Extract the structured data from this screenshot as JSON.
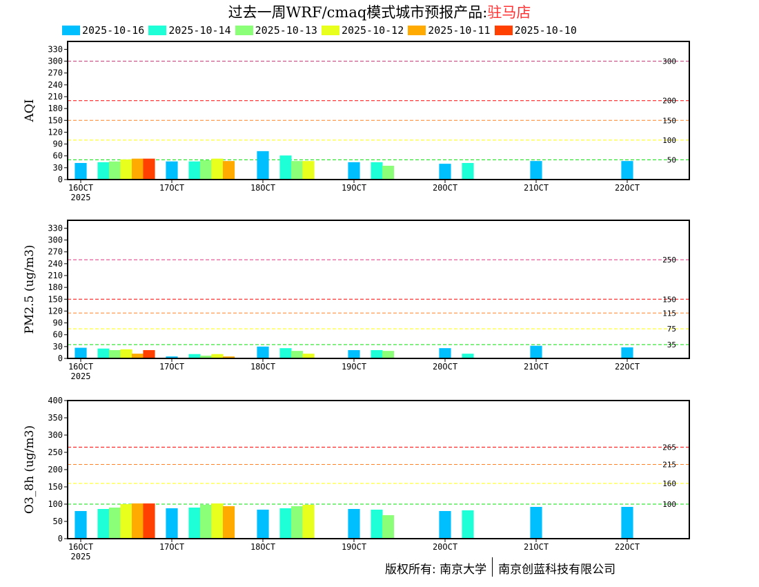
{
  "title": {
    "main": "过去一周WRF/cmaq模式城市预报产品:",
    "site": "驻马店"
  },
  "footer": {
    "left": "版权所有: 南京大学",
    "right": "南京创蓝科技有限公司"
  },
  "chart_data": [
    {
      "type": "bar",
      "ylabel": "AQI",
      "ylim": [
        0,
        350
      ],
      "yticks": [
        0,
        30,
        60,
        90,
        120,
        150,
        180,
        210,
        240,
        270,
        300,
        330
      ],
      "x_day_start": 16,
      "xticks": [
        "16OCT",
        "17OCT",
        "18OCT",
        "19OCT",
        "20OCT",
        "21OCT",
        "22OCT"
      ],
      "xsub": "2025",
      "thresholds": [
        {
          "value": 300,
          "label": "300",
          "color": "#c0306f"
        },
        {
          "value": 200,
          "label": "200",
          "color": "#ff0000"
        },
        {
          "value": 150,
          "label": "150",
          "color": "#ff8020"
        },
        {
          "value": 100,
          "label": "100",
          "color": "#ffff00"
        },
        {
          "value": 50,
          "label": "50",
          "color": "#00e000"
        }
      ],
      "series": [
        {
          "name": "2025-10-16",
          "color": "#00bfff",
          "values": [
            42,
            46,
            72,
            44,
            40,
            47,
            47
          ]
        },
        {
          "name": "2025-10-14",
          "color": "#1effd8",
          "values": [
            44,
            46,
            61,
            44,
            42
          ]
        },
        {
          "name": "2025-10-13",
          "color": "#8cff78",
          "values": [
            46,
            49,
            47,
            35
          ]
        },
        {
          "name": "2025-10-12",
          "color": "#e8ff1e",
          "values": [
            51,
            53,
            47
          ]
        },
        {
          "name": "2025-10-11",
          "color": "#ffaa00",
          "values": [
            53,
            47
          ]
        },
        {
          "name": "2025-10-10",
          "color": "#ff4000",
          "values": [
            53
          ]
        }
      ]
    },
    {
      "type": "bar",
      "ylabel": "PM2.5 (ug/m3)",
      "ylim": [
        0,
        350
      ],
      "yticks": [
        0,
        30,
        60,
        90,
        120,
        150,
        180,
        210,
        240,
        270,
        300,
        330
      ],
      "x_day_start": 16,
      "xticks": [
        "16OCT",
        "17OCT",
        "18OCT",
        "19OCT",
        "20OCT",
        "21OCT",
        "22OCT"
      ],
      "xsub": "2025",
      "thresholds": [
        {
          "value": 250,
          "label": "250",
          "color": "#e0307f"
        },
        {
          "value": 150,
          "label": "150",
          "color": "#ff0000"
        },
        {
          "value": 115,
          "label": "115",
          "color": "#ff8020"
        },
        {
          "value": 75,
          "label": "75",
          "color": "#ffff00"
        },
        {
          "value": 35,
          "label": "35",
          "color": "#00e000"
        }
      ],
      "series": [
        {
          "name": "2025-10-16",
          "color": "#00bfff",
          "values": [
            27,
            5,
            30,
            21,
            26,
            32,
            28
          ]
        },
        {
          "name": "2025-10-14",
          "color": "#1effd8",
          "values": [
            25,
            11,
            26,
            21,
            12
          ]
        },
        {
          "name": "2025-10-13",
          "color": "#8cff78",
          "values": [
            21,
            7,
            19,
            19
          ]
        },
        {
          "name": "2025-10-12",
          "color": "#e8ff1e",
          "values": [
            23,
            11,
            12
          ]
        },
        {
          "name": "2025-10-11",
          "color": "#ffaa00",
          "values": [
            12,
            5
          ]
        },
        {
          "name": "2025-10-10",
          "color": "#ff4000",
          "values": [
            21
          ]
        }
      ]
    },
    {
      "type": "bar",
      "ylabel": "O3_8h (ug/m3)",
      "ylim": [
        0,
        400
      ],
      "yticks": [
        0,
        50,
        100,
        150,
        200,
        250,
        300,
        350,
        400
      ],
      "x_day_start": 16,
      "xticks": [
        "16OCT",
        "17OCT",
        "18OCT",
        "19OCT",
        "20OCT",
        "21OCT",
        "22OCT"
      ],
      "xsub": "2025",
      "thresholds": [
        {
          "value": 265,
          "label": "265",
          "color": "#ff0000"
        },
        {
          "value": 215,
          "label": "215",
          "color": "#ff8020"
        },
        {
          "value": 160,
          "label": "160",
          "color": "#ffff00"
        },
        {
          "value": 100,
          "label": "100",
          "color": "#00e000"
        }
      ],
      "series": [
        {
          "name": "2025-10-16",
          "color": "#00bfff",
          "values": [
            80,
            88,
            84,
            86,
            80,
            92,
            92
          ]
        },
        {
          "name": "2025-10-14",
          "color": "#1effd8",
          "values": [
            86,
            90,
            88,
            84,
            82
          ]
        },
        {
          "name": "2025-10-13",
          "color": "#8cff78",
          "values": [
            90,
            98,
            94,
            68
          ]
        },
        {
          "name": "2025-10-12",
          "color": "#e8ff1e",
          "values": [
            100,
            102,
            98
          ]
        },
        {
          "name": "2025-10-11",
          "color": "#ffaa00",
          "values": [
            102,
            94
          ]
        },
        {
          "name": "2025-10-10",
          "color": "#ff4000",
          "values": [
            102
          ]
        }
      ]
    }
  ]
}
